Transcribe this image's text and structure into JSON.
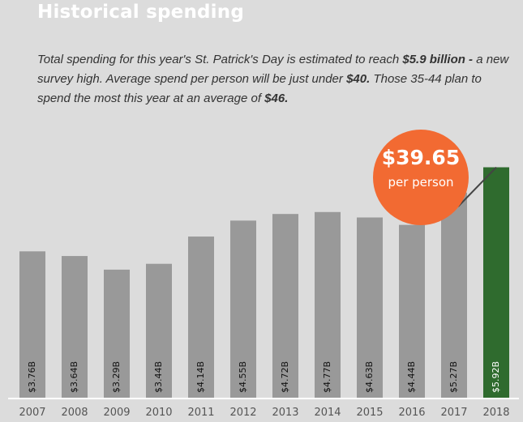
{
  "title": "Historical spending",
  "intro": {
    "p1": "Total spending for this year's St. Patrick's Day is estimated to reach ",
    "b1": "$5.9 billion -",
    "p2": " a new survey high. Average spend per person will be just under ",
    "b2": "$40.",
    "p3": " Those 35-44 plan to spend the most this year at an average of ",
    "b3": "$46."
  },
  "callout": {
    "value": "$39.65",
    "label": "per person",
    "color": "#f26a32"
  },
  "colors": {
    "bar": "#999999",
    "highlight": "#2f6b2e",
    "axis": "#ffffff",
    "background": "#dcdcdc"
  },
  "chart_data": {
    "type": "bar",
    "title": "Historical spending",
    "xlabel": "",
    "ylabel": "",
    "ylim": [
      0,
      7.2
    ],
    "grid": false,
    "categories": [
      "2007",
      "2008",
      "2009",
      "2010",
      "2011",
      "2012",
      "2013",
      "2014",
      "2015",
      "2016",
      "2017",
      "2018"
    ],
    "values": [
      3.76,
      3.64,
      3.29,
      3.44,
      4.14,
      4.55,
      4.72,
      4.77,
      4.63,
      4.44,
      5.27,
      5.92
    ],
    "data_labels": [
      "$3.76B",
      "$3.64B",
      "$3.29B",
      "$3.44B",
      "$4.14B",
      "$4.55B",
      "$4.72B",
      "$4.77B",
      "$4.63B",
      "$4.44B",
      "$5.27B",
      "$5.92B"
    ],
    "highlight_category": "2018"
  }
}
